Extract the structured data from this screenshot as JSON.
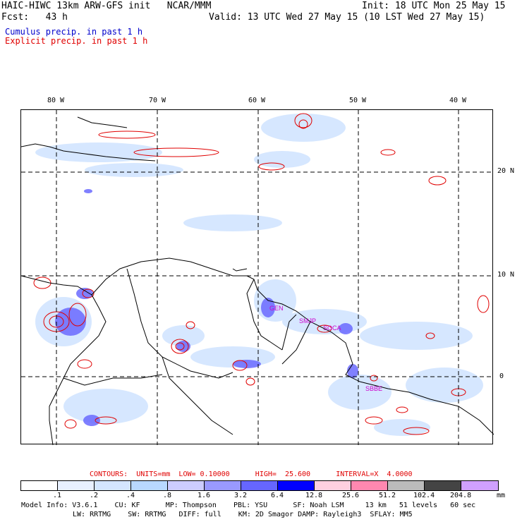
{
  "header": {
    "line1_left": "HAIC-HIWC 13km ARW-GFS init   NCAR/MMM",
    "line1_right": "Init: 18 UTC Mon 25 May 15",
    "line2_left": "Fcst:   43 h",
    "line2_right": "Valid: 13 UTC Wed 27 May 15 (10 LST Wed 27 May 15)",
    "legend_cumulus": "Cumulus precip. in past 1 h",
    "legend_explicit": "Explicit precip. in past 1 h"
  },
  "colors": {
    "cumulus": "#0000cc",
    "explicit": "#e00000",
    "coast": "#000000",
    "station": "#cc00cc"
  },
  "map": {
    "lon_labels": [
      "80 W",
      "70 W",
      "60 W",
      "50 W",
      "40 W"
    ],
    "lat_labels": [
      "20 N",
      "10 N",
      "0"
    ],
    "stations": [
      "GEN",
      "SMJP",
      "SOCA",
      "SBBE"
    ]
  },
  "contour_info": {
    "label": "CONTOURS:  UNITS=mm  LOW= 0.10000      HIGH=  25.600      INTERVAL=X  4.0000"
  },
  "colorbar": {
    "colors": [
      "#ffffff",
      "#e8f0ff",
      "#d4e6ff",
      "#b8d8ff",
      "#ccccff",
      "#9999ff",
      "#6666ff",
      "#0000ff",
      "#ffd0e0",
      "#ff88b0",
      "#bbbbbb",
      "#444444",
      "#d0a0ff"
    ],
    "labels": [
      ".1",
      ".2",
      ".4",
      ".8",
      "1.6",
      "3.2",
      "6.4",
      "12.8",
      "25.6",
      "51.2",
      "102.4",
      "204.8"
    ],
    "units": "mm"
  },
  "model_info": {
    "line1": "Model Info: V3.6.1    CU: KF      MP: Thompson    PBL: YSU      SF: Noah LSM     13 km   51 levels   60 sec",
    "line2": "LW: RRTMG    SW: RRTMG   DIFF: full    KM: 2D Smagor DAMP: Rayleigh3  SFLAY: MM5"
  }
}
